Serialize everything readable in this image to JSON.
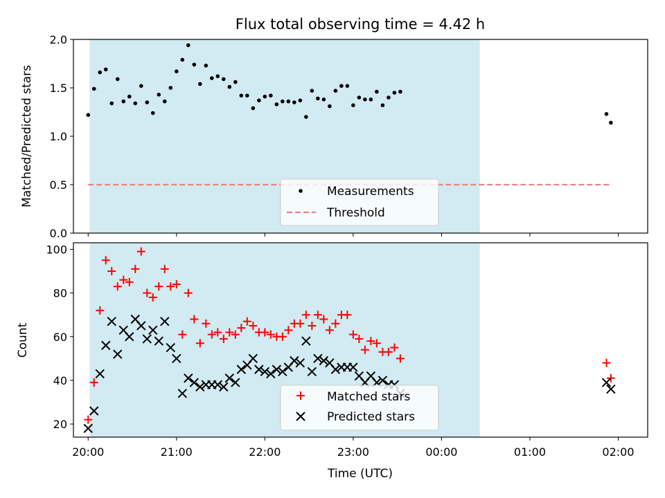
{
  "title": "Flux total observing time = 4.42 h",
  "chart_data": [
    {
      "type": "scatter",
      "ylabel": "Matched/Predicted stars",
      "ylim": [
        0,
        2.0
      ],
      "yticks": [
        0.0,
        0.5,
        1.0,
        1.5,
        2.0
      ],
      "ytick_labels": [
        "0.0",
        "0.5",
        "1.0",
        "1.5",
        "2.0"
      ],
      "shaded_span": [
        "20:01",
        "00:26"
      ],
      "shade_color": "#add8e6",
      "threshold": {
        "name": "Threshold",
        "value": 0.5,
        "color": "#f08080",
        "start": "20:00",
        "end": "01:55"
      },
      "series": [
        {
          "name": "Measurements",
          "color": "#000000",
          "marker": "dot",
          "points": [
            [
              "20:00",
              1.22
            ],
            [
              "20:04",
              1.49
            ],
            [
              "20:08",
              1.66
            ],
            [
              "20:12",
              1.69
            ],
            [
              "20:16",
              1.34
            ],
            [
              "20:20",
              1.59
            ],
            [
              "20:24",
              1.36
            ],
            [
              "20:28",
              1.41
            ],
            [
              "20:32",
              1.34
            ],
            [
              "20:36",
              1.52
            ],
            [
              "20:40",
              1.35
            ],
            [
              "20:44",
              1.24
            ],
            [
              "20:48",
              1.43
            ],
            [
              "20:52",
              1.36
            ],
            [
              "20:56",
              1.5
            ],
            [
              "21:00",
              1.67
            ],
            [
              "21:04",
              1.79
            ],
            [
              "21:08",
              1.94
            ],
            [
              "21:12",
              1.74
            ],
            [
              "21:16",
              1.54
            ],
            [
              "21:20",
              1.73
            ],
            [
              "21:24",
              1.6
            ],
            [
              "21:28",
              1.62
            ],
            [
              "21:32",
              1.59
            ],
            [
              "21:36",
              1.51
            ],
            [
              "21:40",
              1.56
            ],
            [
              "21:44",
              1.42
            ],
            [
              "21:48",
              1.42
            ],
            [
              "21:52",
              1.29
            ],
            [
              "21:56",
              1.37
            ],
            [
              "22:00",
              1.41
            ],
            [
              "22:04",
              1.42
            ],
            [
              "22:08",
              1.33
            ],
            [
              "22:12",
              1.36
            ],
            [
              "22:16",
              1.36
            ],
            [
              "22:20",
              1.35
            ],
            [
              "22:24",
              1.37
            ],
            [
              "22:28",
              1.2
            ],
            [
              "22:32",
              1.47
            ],
            [
              "22:36",
              1.39
            ],
            [
              "22:40",
              1.38
            ],
            [
              "22:44",
              1.31
            ],
            [
              "22:48",
              1.47
            ],
            [
              "22:52",
              1.52
            ],
            [
              "22:56",
              1.52
            ],
            [
              "23:00",
              1.32
            ],
            [
              "23:04",
              1.4
            ],
            [
              "23:08",
              1.38
            ],
            [
              "23:12",
              1.38
            ],
            [
              "23:16",
              1.46
            ],
            [
              "23:20",
              1.32
            ],
            [
              "23:24",
              1.4
            ],
            [
              "23:28",
              1.45
            ],
            [
              "23:32",
              1.46
            ],
            [
              "01:52",
              1.23
            ],
            [
              "01:55",
              1.14
            ]
          ]
        }
      ],
      "legend": [
        "Measurements",
        "Threshold"
      ],
      "legend_position": "lower-center"
    },
    {
      "type": "scatter",
      "xlabel": "Time (UTC)",
      "ylabel": "Count",
      "ylim": [
        14,
        103
      ],
      "yticks": [
        20,
        40,
        60,
        80,
        100
      ],
      "ytick_labels": [
        "20",
        "40",
        "60",
        "80",
        "100"
      ],
      "xlim": [
        "19:50",
        "02:20"
      ],
      "xticks": [
        "20:00",
        "21:00",
        "22:00",
        "23:00",
        "00:00",
        "01:00",
        "02:00"
      ],
      "shaded_span": [
        "20:01",
        "00:26"
      ],
      "series": [
        {
          "name": "Matched stars",
          "color": "#ff0000",
          "marker": "plus",
          "points": [
            [
              "20:00",
              22
            ],
            [
              "20:04",
              39
            ],
            [
              "20:08",
              72
            ],
            [
              "20:12",
              95
            ],
            [
              "20:16",
              90
            ],
            [
              "20:20",
              83
            ],
            [
              "20:24",
              86
            ],
            [
              "20:28",
              85
            ],
            [
              "20:32",
              91
            ],
            [
              "20:36",
              99
            ],
            [
              "20:40",
              80
            ],
            [
              "20:44",
              78
            ],
            [
              "20:48",
              83
            ],
            [
              "20:52",
              91
            ],
            [
              "20:56",
              83
            ],
            [
              "21:00",
              84
            ],
            [
              "21:04",
              61
            ],
            [
              "21:08",
              80
            ],
            [
              "21:12",
              68
            ],
            [
              "21:16",
              57
            ],
            [
              "21:20",
              66
            ],
            [
              "21:24",
              61
            ],
            [
              "21:28",
              62
            ],
            [
              "21:32",
              59
            ],
            [
              "21:36",
              62
            ],
            [
              "21:40",
              61
            ],
            [
              "21:44",
              64
            ],
            [
              "21:48",
              67
            ],
            [
              "21:52",
              65
            ],
            [
              "21:56",
              62
            ],
            [
              "22:00",
              62
            ],
            [
              "22:04",
              61
            ],
            [
              "22:08",
              60
            ],
            [
              "22:12",
              60
            ],
            [
              "22:16",
              63
            ],
            [
              "22:20",
              66
            ],
            [
              "22:24",
              66
            ],
            [
              "22:28",
              70
            ],
            [
              "22:32",
              65
            ],
            [
              "22:36",
              70
            ],
            [
              "22:40",
              68
            ],
            [
              "22:44",
              63
            ],
            [
              "22:48",
              66
            ],
            [
              "22:52",
              70
            ],
            [
              "22:56",
              70
            ],
            [
              "23:00",
              61
            ],
            [
              "23:04",
              59
            ],
            [
              "23:08",
              54
            ],
            [
              "23:12",
              58
            ],
            [
              "23:16",
              57
            ],
            [
              "23:20",
              53
            ],
            [
              "23:24",
              53
            ],
            [
              "23:28",
              55
            ],
            [
              "23:32",
              50
            ],
            [
              "01:52",
              48
            ],
            [
              "01:55",
              41
            ]
          ]
        },
        {
          "name": "Predicted stars",
          "color": "#000000",
          "marker": "x",
          "points": [
            [
              "20:00",
              18
            ],
            [
              "20:04",
              26
            ],
            [
              "20:08",
              43
            ],
            [
              "20:12",
              56
            ],
            [
              "20:16",
              67
            ],
            [
              "20:20",
              52
            ],
            [
              "20:24",
              63
            ],
            [
              "20:28",
              60
            ],
            [
              "20:32",
              68
            ],
            [
              "20:36",
              65
            ],
            [
              "20:40",
              59
            ],
            [
              "20:44",
              63
            ],
            [
              "20:48",
              58
            ],
            [
              "20:52",
              67
            ],
            [
              "20:56",
              55
            ],
            [
              "21:00",
              50
            ],
            [
              "21:04",
              34
            ],
            [
              "21:08",
              41
            ],
            [
              "21:12",
              39
            ],
            [
              "21:16",
              37
            ],
            [
              "21:20",
              38
            ],
            [
              "21:24",
              38
            ],
            [
              "21:28",
              38
            ],
            [
              "21:32",
              37
            ],
            [
              "21:36",
              41
            ],
            [
              "21:40",
              39
            ],
            [
              "21:44",
              45
            ],
            [
              "21:48",
              47
            ],
            [
              "21:52",
              50
            ],
            [
              "21:56",
              45
            ],
            [
              "22:00",
              44
            ],
            [
              "22:04",
              43
            ],
            [
              "22:08",
              45
            ],
            [
              "22:12",
              44
            ],
            [
              "22:16",
              46
            ],
            [
              "22:20",
              49
            ],
            [
              "22:24",
              48
            ],
            [
              "22:28",
              58
            ],
            [
              "22:32",
              44
            ],
            [
              "22:36",
              50
            ],
            [
              "22:40",
              49
            ],
            [
              "22:44",
              48
            ],
            [
              "22:48",
              45
            ],
            [
              "22:52",
              46
            ],
            [
              "22:56",
              46
            ],
            [
              "23:00",
              46
            ],
            [
              "23:04",
              42
            ],
            [
              "23:08",
              39
            ],
            [
              "23:12",
              42
            ],
            [
              "23:16",
              39
            ],
            [
              "23:20",
              40
            ],
            [
              "23:24",
              38
            ],
            [
              "23:28",
              38
            ],
            [
              "23:32",
              34
            ],
            [
              "01:52",
              39
            ],
            [
              "01:55",
              36
            ]
          ]
        }
      ],
      "legend": [
        "Matched stars",
        "Predicted stars"
      ],
      "legend_position": "lower-center"
    }
  ]
}
